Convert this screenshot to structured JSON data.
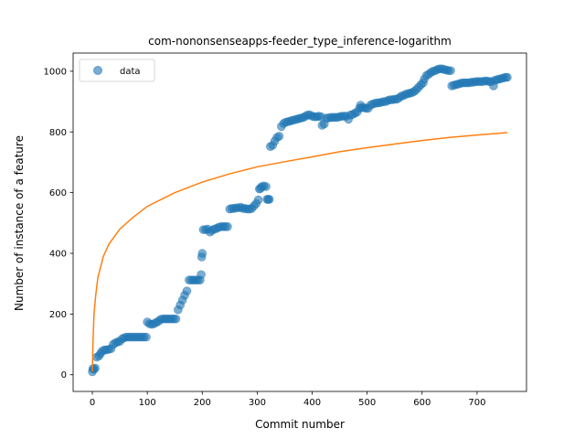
{
  "chart_data": {
    "type": "scatter",
    "title": "com-nononsenseapps-feeder_type_inference-logarithm",
    "xlabel": "Commit number",
    "ylabel": "Number of instance of a feature",
    "xlim": [
      -35,
      790
    ],
    "ylim": [
      -55,
      1060
    ],
    "xticks": [
      0,
      100,
      200,
      300,
      400,
      500,
      600,
      700
    ],
    "yticks": [
      0,
      200,
      400,
      600,
      800,
      1000
    ],
    "grid": false,
    "legend": {
      "placement": "top-left",
      "entries": [
        "data"
      ]
    },
    "colors": {
      "scatter": "#1f77b4",
      "fit": "#ff7f0e"
    },
    "series": [
      {
        "name": "data",
        "kind": "scatter",
        "points": [
          [
            0,
            10
          ],
          [
            1,
            20
          ],
          [
            3,
            18
          ],
          [
            5,
            22
          ],
          [
            8,
            58
          ],
          [
            12,
            62
          ],
          [
            15,
            70
          ],
          [
            18,
            78
          ],
          [
            22,
            82
          ],
          [
            26,
            82
          ],
          [
            30,
            84
          ],
          [
            34,
            86
          ],
          [
            38,
            100
          ],
          [
            42,
            105
          ],
          [
            46,
            108
          ],
          [
            50,
            110
          ],
          [
            54,
            118
          ],
          [
            58,
            122
          ],
          [
            62,
            124
          ],
          [
            66,
            124
          ],
          [
            70,
            124
          ],
          [
            74,
            124
          ],
          [
            78,
            124
          ],
          [
            82,
            124
          ],
          [
            86,
            124
          ],
          [
            90,
            124
          ],
          [
            94,
            124
          ],
          [
            98,
            124
          ],
          [
            100,
            174
          ],
          [
            104,
            168
          ],
          [
            108,
            166
          ],
          [
            112,
            168
          ],
          [
            116,
            172
          ],
          [
            120,
            176
          ],
          [
            124,
            182
          ],
          [
            128,
            184
          ],
          [
            132,
            184
          ],
          [
            136,
            184
          ],
          [
            140,
            184
          ],
          [
            144,
            184
          ],
          [
            148,
            184
          ],
          [
            152,
            184
          ],
          [
            156,
            214
          ],
          [
            160,
            230
          ],
          [
            164,
            246
          ],
          [
            168,
            262
          ],
          [
            172,
            276
          ],
          [
            176,
            312
          ],
          [
            180,
            312
          ],
          [
            184,
            312
          ],
          [
            188,
            312
          ],
          [
            192,
            312
          ],
          [
            196,
            312
          ],
          [
            198,
            330
          ],
          [
            199,
            388
          ],
          [
            200,
            400
          ],
          [
            202,
            478
          ],
          [
            206,
            478
          ],
          [
            210,
            480
          ],
          [
            214,
            470
          ],
          [
            218,
            476
          ],
          [
            222,
            480
          ],
          [
            226,
            482
          ],
          [
            230,
            486
          ],
          [
            234,
            488
          ],
          [
            238,
            488
          ],
          [
            242,
            488
          ],
          [
            246,
            488
          ],
          [
            250,
            546
          ],
          [
            254,
            548
          ],
          [
            258,
            548
          ],
          [
            262,
            550
          ],
          [
            266,
            550
          ],
          [
            270,
            552
          ],
          [
            274,
            548
          ],
          [
            278,
            548
          ],
          [
            282,
            546
          ],
          [
            286,
            546
          ],
          [
            290,
            548
          ],
          [
            294,
            556
          ],
          [
            298,
            564
          ],
          [
            302,
            576
          ],
          [
            304,
            612
          ],
          [
            306,
            614
          ],
          [
            308,
            620
          ],
          [
            312,
            622
          ],
          [
            316,
            620
          ],
          [
            318,
            578
          ],
          [
            320,
            578
          ],
          [
            322,
            578
          ],
          [
            324,
            752
          ],
          [
            328,
            756
          ],
          [
            332,
            770
          ],
          [
            336,
            782
          ],
          [
            340,
            786
          ],
          [
            344,
            818
          ],
          [
            348,
            828
          ],
          [
            352,
            832
          ],
          [
            356,
            834
          ],
          [
            360,
            836
          ],
          [
            364,
            838
          ],
          [
            368,
            840
          ],
          [
            372,
            842
          ],
          [
            376,
            844
          ],
          [
            380,
            846
          ],
          [
            384,
            848
          ],
          [
            388,
            852
          ],
          [
            392,
            856
          ],
          [
            396,
            856
          ],
          [
            400,
            852
          ],
          [
            404,
            850
          ],
          [
            408,
            850
          ],
          [
            412,
            852
          ],
          [
            416,
            850
          ],
          [
            418,
            822
          ],
          [
            422,
            826
          ],
          [
            426,
            846
          ],
          [
            430,
            846
          ],
          [
            434,
            848
          ],
          [
            438,
            848
          ],
          [
            442,
            848
          ],
          [
            446,
            848
          ],
          [
            450,
            850
          ],
          [
            454,
            852
          ],
          [
            458,
            852
          ],
          [
            462,
            852
          ],
          [
            466,
            842
          ],
          [
            470,
            856
          ],
          [
            474,
            858
          ],
          [
            478,
            862
          ],
          [
            482,
            866
          ],
          [
            486,
            878
          ],
          [
            488,
            888
          ],
          [
            490,
            880
          ],
          [
            494,
            880
          ],
          [
            498,
            878
          ],
          [
            502,
            878
          ],
          [
            506,
            888
          ],
          [
            510,
            892
          ],
          [
            514,
            894
          ],
          [
            518,
            896
          ],
          [
            522,
            896
          ],
          [
            526,
            898
          ],
          [
            530,
            900
          ],
          [
            534,
            900
          ],
          [
            538,
            904
          ],
          [
            542,
            906
          ],
          [
            546,
            906
          ],
          [
            550,
            908
          ],
          [
            554,
            908
          ],
          [
            558,
            912
          ],
          [
            562,
            918
          ],
          [
            566,
            920
          ],
          [
            570,
            924
          ],
          [
            574,
            926
          ],
          [
            578,
            928
          ],
          [
            582,
            930
          ],
          [
            586,
            934
          ],
          [
            590,
            940
          ],
          [
            594,
            948
          ],
          [
            598,
            956
          ],
          [
            602,
            962
          ],
          [
            604,
            974
          ],
          [
            608,
            986
          ],
          [
            612,
            990
          ],
          [
            616,
            996
          ],
          [
            620,
            1000
          ],
          [
            624,
            1002
          ],
          [
            628,
            1006
          ],
          [
            632,
            1008
          ],
          [
            636,
            1008
          ],
          [
            640,
            1006
          ],
          [
            644,
            1004
          ],
          [
            648,
            1002
          ],
          [
            652,
            1002
          ],
          [
            654,
            952
          ],
          [
            658,
            954
          ],
          [
            662,
            956
          ],
          [
            666,
            958
          ],
          [
            670,
            960
          ],
          [
            674,
            962
          ],
          [
            678,
            962
          ],
          [
            682,
            962
          ],
          [
            686,
            962
          ],
          [
            690,
            964
          ],
          [
            694,
            964
          ],
          [
            698,
            966
          ],
          [
            702,
            966
          ],
          [
            706,
            966
          ],
          [
            710,
            966
          ],
          [
            714,
            968
          ],
          [
            718,
            968
          ],
          [
            722,
            966
          ],
          [
            726,
            966
          ],
          [
            730,
            952
          ],
          [
            732,
            970
          ],
          [
            736,
            972
          ],
          [
            740,
            974
          ],
          [
            744,
            976
          ],
          [
            748,
            978
          ],
          [
            752,
            980
          ],
          [
            755,
            980
          ]
        ]
      },
      {
        "kind": "line",
        "model": "logarithm",
        "points": [
          [
            0,
            10
          ],
          [
            1,
            100
          ],
          [
            3,
            200
          ],
          [
            6,
            260
          ],
          [
            10,
            320
          ],
          [
            20,
            390
          ],
          [
            30,
            430
          ],
          [
            50,
            480
          ],
          [
            75,
            520
          ],
          [
            100,
            555
          ],
          [
            150,
            600
          ],
          [
            200,
            635
          ],
          [
            250,
            662
          ],
          [
            300,
            685
          ],
          [
            350,
            702
          ],
          [
            400,
            718
          ],
          [
            450,
            735
          ],
          [
            500,
            748
          ],
          [
            550,
            760
          ],
          [
            600,
            772
          ],
          [
            650,
            782
          ],
          [
            700,
            790
          ],
          [
            755,
            798
          ]
        ]
      }
    ]
  }
}
